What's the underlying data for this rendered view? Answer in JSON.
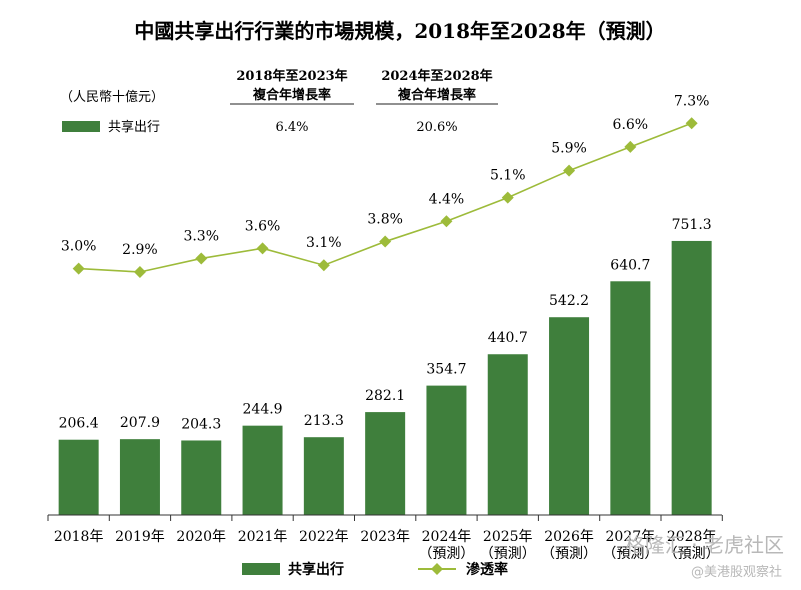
{
  "colors": {
    "bar": "#3f7f3c",
    "line": "#9dbb3a",
    "marker": "#9dbb3a"
  },
  "header": {
    "cagr_col1_line1": "2018年至2023年",
    "cagr_col1_line2": "複合年增長率",
    "cagr_col2_line1": "2024年至2028年",
    "cagr_col2_line2": "複合年增長率",
    "unit": "（人民幣十億元）",
    "row_label": "共享出行",
    "cagr_col1_value": "6.4%",
    "cagr_col2_value": "20.6%"
  },
  "legend": {
    "bar_label": "共享出行",
    "line_label": "滲透率"
  },
  "watermark": {
    "line1": "格隆汇 · 老虎社区",
    "line2": "@美港股观察社"
  },
  "chart_data": {
    "type": "bar",
    "title": "中國共享出行行業的市場規模，2018年至2028年（預測）",
    "categories": [
      "2018年",
      "2019年",
      "2020年",
      "2021年",
      "2022年",
      "2023年",
      "2024年",
      "2025年",
      "2026年",
      "2027年",
      "2028年"
    ],
    "category_sub": [
      "",
      "",
      "",
      "",
      "",
      "",
      "（預測）",
      "（預測）",
      "（預測）",
      "（預測）",
      "（預測）"
    ],
    "series": [
      {
        "name": "共享出行",
        "type": "bar",
        "values": [
          206.4,
          207.9,
          204.3,
          244.9,
          213.3,
          282.1,
          354.7,
          440.7,
          542.2,
          640.7,
          751.3
        ],
        "labels": [
          "206.4",
          "207.9",
          "204.3",
          "244.9",
          "213.3",
          "282.1",
          "354.7",
          "440.7",
          "542.2",
          "640.7",
          "751.3"
        ]
      },
      {
        "name": "滲透率",
        "type": "line",
        "values": [
          3.0,
          2.9,
          3.3,
          3.6,
          3.1,
          3.8,
          4.4,
          5.1,
          5.9,
          6.6,
          7.3
        ],
        "labels": [
          "3.0%",
          "2.9%",
          "3.3%",
          "3.6%",
          "3.1%",
          "3.8%",
          "4.4%",
          "5.1%",
          "5.9%",
          "6.6%",
          "7.3%"
        ]
      }
    ],
    "ylim_bar": [
      0,
      795
    ],
    "ylim_line": [
      0,
      9
    ],
    "grid": false,
    "legend_position": "bottom"
  }
}
